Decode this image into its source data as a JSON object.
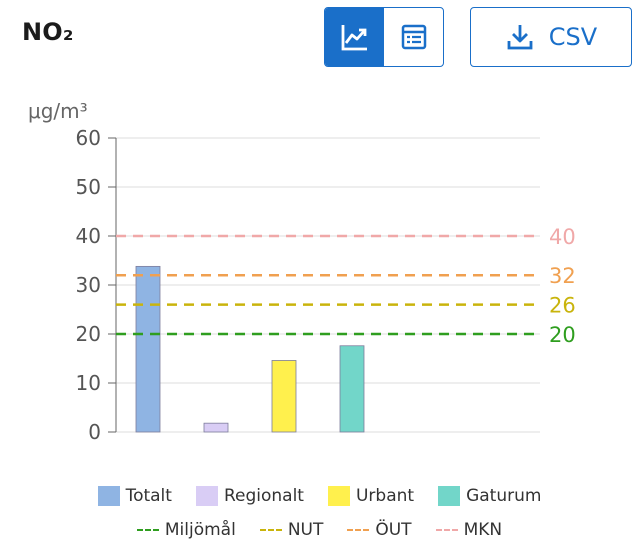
{
  "header": {
    "title": "NO₂",
    "csv_label": "CSV"
  },
  "chart_data": {
    "type": "bar",
    "unit": "μg/m³",
    "ylim": [
      0,
      60
    ],
    "yticks": [
      0,
      10,
      20,
      30,
      40,
      50,
      60
    ],
    "grid": true,
    "categories": [
      "Totalt",
      "Regionalt",
      "Urbant",
      "Gaturum"
    ],
    "values": [
      33.8,
      1.8,
      14.6,
      17.6
    ],
    "colors": [
      "#8fb4e3",
      "#d9cdf5",
      "#fff04d",
      "#72d6c9"
    ],
    "reference_lines": [
      {
        "name": "Miljömål",
        "value": 20,
        "label": "20",
        "color": "#2f9e1f"
      },
      {
        "name": "NUT",
        "value": 26,
        "label": "26",
        "color": "#c9b40c"
      },
      {
        "name": "ÖUT",
        "value": 32,
        "label": "32",
        "color": "#f0a050"
      },
      {
        "name": "MKN",
        "value": 40,
        "label": "40",
        "color": "#f0a8a8"
      }
    ]
  }
}
